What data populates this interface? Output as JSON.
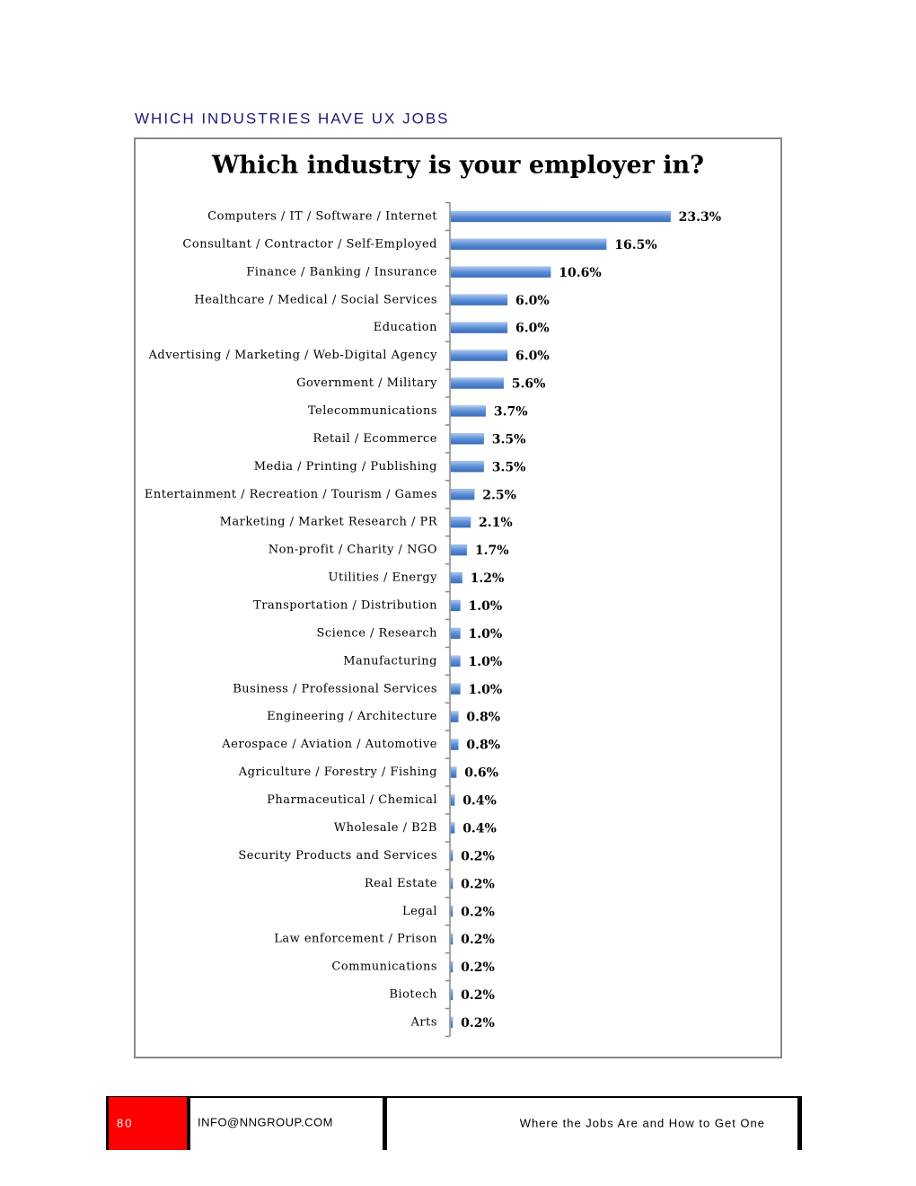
{
  "header": {
    "title": "WHICH INDUSTRIES HAVE UX JOBS"
  },
  "chart_data": {
    "type": "bar",
    "orientation": "horizontal",
    "title": "Which industry is your employer in?",
    "categories": [
      "Computers / IT / Software / Internet",
      "Consultant / Contractor / Self-Employed",
      "Finance / Banking / Insurance",
      "Healthcare / Medical / Social Services",
      "Education",
      "Advertising / Marketing / Web-Digital Agency",
      "Government / Military",
      "Telecommunications",
      "Retail / Ecommerce",
      "Media / Printing / Publishing",
      "Entertainment / Recreation / Tourism / Games",
      "Marketing / Market Research / PR",
      "Non-profit / Charity / NGO",
      "Utilities / Energy",
      "Transportation / Distribution",
      "Science / Research",
      "Manufacturing",
      "Business / Professional Services",
      "Engineering / Architecture",
      "Aerospace / Aviation / Automotive",
      "Agriculture / Forestry / Fishing",
      "Pharmaceutical / Chemical",
      "Wholesale / B2B",
      "Security Products and Services",
      "Real Estate",
      "Legal",
      "Law enforcement / Prison",
      "Communications",
      "Biotech",
      "Arts"
    ],
    "values": [
      23.3,
      16.5,
      10.6,
      6.0,
      6.0,
      6.0,
      5.6,
      3.7,
      3.5,
      3.5,
      2.5,
      2.1,
      1.7,
      1.2,
      1.0,
      1.0,
      1.0,
      1.0,
      0.8,
      0.8,
      0.6,
      0.4,
      0.4,
      0.2,
      0.2,
      0.2,
      0.2,
      0.2,
      0.2,
      0.2
    ],
    "value_labels": [
      "23.3%",
      "16.5%",
      "10.6%",
      "6.0%",
      "6.0%",
      "6.0%",
      "5.6%",
      "3.7%",
      "3.5%",
      "3.5%",
      "2.5%",
      "2.1%",
      "1.7%",
      "1.2%",
      "1.0%",
      "1.0%",
      "1.0%",
      "1.0%",
      "0.8%",
      "0.8%",
      "0.6%",
      "0.4%",
      "0.4%",
      "0.2%",
      "0.2%",
      "0.2%",
      "0.2%",
      "0.2%",
      "0.2%",
      "0.2%"
    ],
    "color": "#5b8ed6"
  },
  "footer": {
    "page": "80",
    "email": "INFO@NNGROUP.COM",
    "document_title": "Where the Jobs Are and How to Get One"
  }
}
